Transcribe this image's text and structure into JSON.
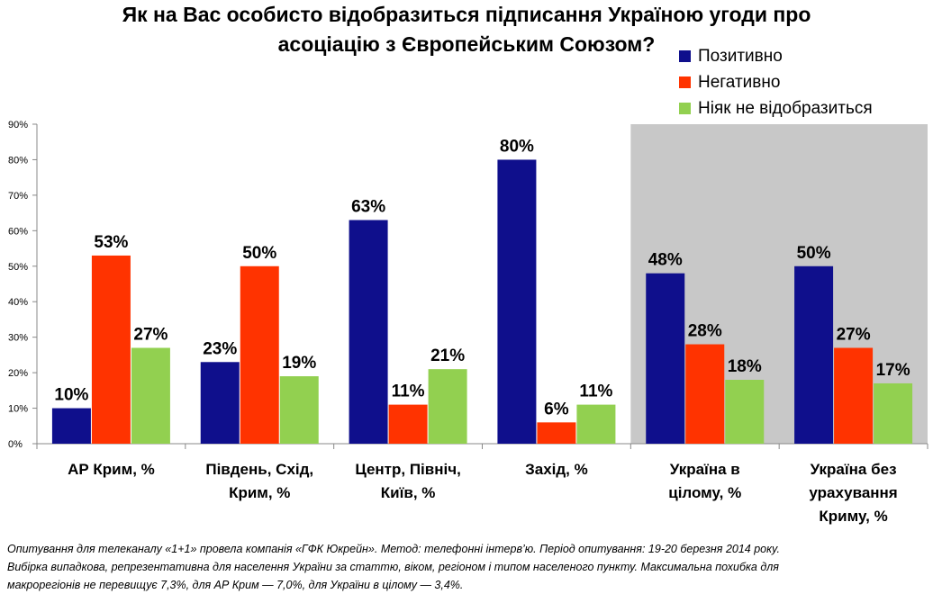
{
  "chart_data": {
    "type": "bar",
    "title_lines": [
      "Як на Вас особисто відобразиться підписання Україною угоди про",
      "асоціацію з Європейським Союзом?"
    ],
    "categories": [
      [
        "АР Крим, %"
      ],
      [
        "Південь, Схід,",
        "Крим, %"
      ],
      [
        "Центр, Північ,",
        "Київ, %"
      ],
      [
        "Захід, %"
      ],
      [
        "Україна в",
        "цілому, %"
      ],
      [
        "Україна без",
        "урахування",
        "Криму, %"
      ]
    ],
    "series": [
      {
        "name": "Позитивно",
        "color": "#0f0f8c",
        "values": [
          10,
          23,
          63,
          80,
          48,
          50
        ]
      },
      {
        "name": "Негативно",
        "color": "#ff3300",
        "values": [
          53,
          50,
          11,
          6,
          28,
          27
        ]
      },
      {
        "name": "Ніяк не відобразиться",
        "color": "#92d050",
        "values": [
          27,
          19,
          21,
          11,
          18,
          17
        ]
      }
    ],
    "y_ticks": [
      "0%",
      "10%",
      "20%",
      "30%",
      "40%",
      "50%",
      "60%",
      "70%",
      "80%",
      "90%"
    ],
    "ylim": [
      0,
      90
    ],
    "highlight_categories": [
      4,
      5
    ],
    "highlight_color": "#c8c8c8",
    "value_suffix": "%"
  },
  "footnote": [
    "Опитування для телеканалу «1+1» провела компанія «ГФК Юкрейн». Метод: телефонні інтерв’ю. Період опитування: 19-20 березня 2014  року.",
    "Вибірка випадкова, репрезентативна для населення України за статтю, віком, регіоном і типом населеного пункту. Максимальна похибка для",
    "макрорегіонів не перевищує 7,3%, для АР Крим — 7,0%, для України в цілому — 3,4%."
  ]
}
